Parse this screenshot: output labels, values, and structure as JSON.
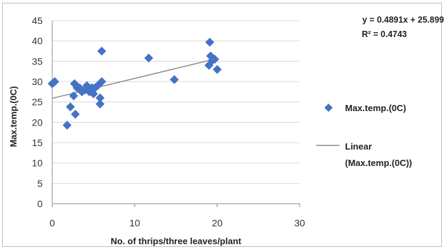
{
  "chart_data": {
    "type": "scatter",
    "title": "",
    "xlabel": "No. of thrips/three leaves/plant",
    "ylabel": "Max.temp.(0C)",
    "xlim": [
      0,
      30
    ],
    "ylim": [
      0,
      45
    ],
    "x_ticks": [
      "0",
      "10",
      "20",
      "30"
    ],
    "y_ticks": [
      "0",
      "5",
      "10",
      "15",
      "20",
      "25",
      "30",
      "35",
      "40",
      "45"
    ],
    "grid": "horizontal",
    "legend_position": "right",
    "series": [
      {
        "name": "Max.temp.(0C)",
        "color": "#4472c4",
        "marker": "diamond",
        "points": [
          [
            0,
            29.5
          ],
          [
            0.3,
            30
          ],
          [
            0.2,
            29.8
          ],
          [
            1.8,
            19.3
          ],
          [
            2.2,
            23.8
          ],
          [
            2.8,
            22
          ],
          [
            2.6,
            26.5
          ],
          [
            2.7,
            29.5
          ],
          [
            3,
            28.5
          ],
          [
            3.3,
            28.5
          ],
          [
            3.6,
            27.5
          ],
          [
            4,
            28
          ],
          [
            4.2,
            29
          ],
          [
            4.5,
            27.5
          ],
          [
            4.8,
            28.5
          ],
          [
            5,
            27
          ],
          [
            5.2,
            28.5
          ],
          [
            5.5,
            29
          ],
          [
            5.8,
            26
          ],
          [
            5.8,
            24.5
          ],
          [
            6,
            30
          ],
          [
            6,
            37.5
          ],
          [
            11.7,
            35.8
          ],
          [
            14.8,
            30.5
          ],
          [
            19,
            34
          ],
          [
            19.1,
            39.7
          ],
          [
            19.2,
            36.3
          ],
          [
            19.4,
            35.2
          ],
          [
            19.7,
            35.5
          ],
          [
            20,
            33
          ]
        ]
      }
    ],
    "trendline": {
      "name": "Linear\n(Max.temp.(0C))",
      "legend_line1": "Linear",
      "legend_line2": "(Max.temp.(0C))",
      "slope": 0.4891,
      "intercept": 25.899,
      "x_range": [
        0,
        19.5
      ],
      "color": "#8c8c8c",
      "equation": "y = 0.4891x + 25.899",
      "r_squared": "R² = 0.4743"
    }
  }
}
